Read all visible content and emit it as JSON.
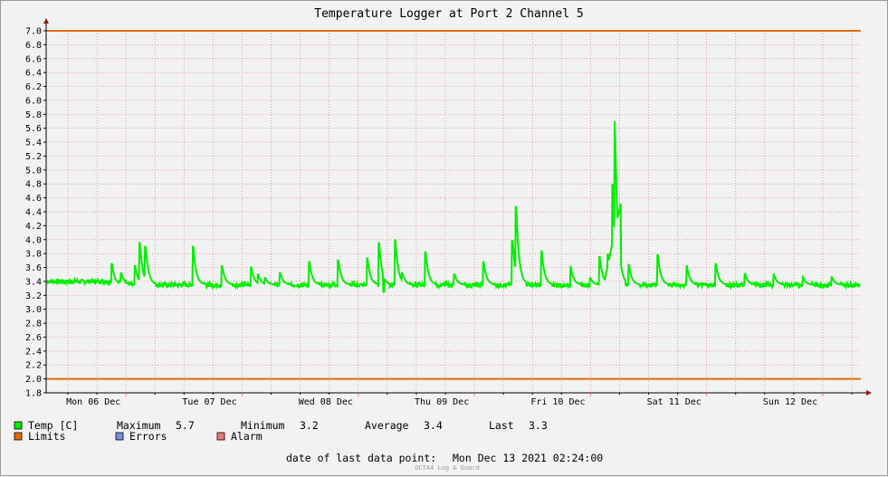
{
  "chart_data": {
    "type": "line",
    "title": "Temperature Logger at Port 2 Channel 5",
    "ylim": [
      1.8,
      7.0
    ],
    "y_ticks": [
      "1.8",
      "2.0",
      "2.2",
      "2.4",
      "2.6",
      "2.8",
      "3.0",
      "3.2",
      "3.4",
      "3.6",
      "3.8",
      "4.0",
      "4.2",
      "4.4",
      "4.6",
      "4.8",
      "5.0",
      "5.2",
      "5.4",
      "5.6",
      "5.8",
      "6.0",
      "6.2",
      "6.4",
      "6.6",
      "6.8",
      "7.0"
    ],
    "x_ticks": [
      "Mon 06 Dec",
      "Tue 07 Dec",
      "Wed 08 Dec",
      "Thu 09 Dec",
      "Fri 10 Dec",
      "Sat 11 Dec",
      "Sun 12 Dec"
    ],
    "x_range_days": [
      0.35,
      7.1
    ],
    "grid": true,
    "colors": {
      "temp": "#00ee00",
      "limits": "#e66a00",
      "errors": "#7b8fe0",
      "alarm": "#ee7777",
      "grid": "#e08080",
      "axis": "#000000"
    },
    "limits": {
      "upper": 7.0,
      "lower": 2.0
    },
    "series": [
      {
        "name": "Temp [C]",
        "baseline": 3.35,
        "spikes": [
          [
            0.38,
            3.65
          ],
          [
            0.46,
            3.52
          ],
          [
            0.58,
            3.62
          ],
          [
            0.62,
            3.95
          ],
          [
            0.67,
            3.9
          ],
          [
            1.08,
            3.9
          ],
          [
            1.33,
            3.62
          ],
          [
            1.58,
            3.6
          ],
          [
            1.64,
            3.5
          ],
          [
            1.7,
            3.45
          ],
          [
            1.83,
            3.52
          ],
          [
            2.08,
            3.68
          ],
          [
            2.33,
            3.7
          ],
          [
            2.58,
            3.73
          ],
          [
            2.68,
            3.95
          ],
          [
            2.82,
            3.99
          ],
          [
            2.88,
            3.52
          ],
          [
            3.08,
            3.82
          ],
          [
            3.33,
            3.5
          ],
          [
            3.58,
            3.68
          ],
          [
            3.83,
            3.98
          ],
          [
            3.86,
            4.47
          ],
          [
            4.08,
            3.83
          ],
          [
            4.33,
            3.62
          ],
          [
            4.5,
            3.45
          ],
          [
            4.58,
            3.75
          ],
          [
            4.65,
            3.8
          ],
          [
            4.69,
            4.8
          ],
          [
            4.71,
            5.7
          ],
          [
            4.83,
            3.65
          ],
          [
            5.08,
            3.78
          ],
          [
            5.33,
            3.63
          ],
          [
            5.58,
            3.65
          ],
          [
            5.83,
            3.52
          ],
          [
            6.08,
            3.5
          ],
          [
            6.33,
            3.46
          ],
          [
            6.58,
            3.46
          ],
          [
            6.83,
            3.59
          ],
          [
            7.08,
            3.58
          ]
        ]
      }
    ]
  },
  "legend": {
    "temp_label": "Temp [C]",
    "maximum_label": "Maximum",
    "maximum_value": "5.7",
    "minimum_label": "Minimum",
    "minimum_value": "3.2",
    "average_label": "Average",
    "average_value": "3.4",
    "last_label": "Last",
    "last_value": "3.3",
    "limits_label": "Limits",
    "errors_label": "Errors",
    "alarm_label": "Alarm"
  },
  "footer": {
    "date_label": "date of last data point:",
    "date_value": "Mon Dec 13 2021 02:24:00",
    "watermark": "OCTA4 Log & Guard"
  }
}
